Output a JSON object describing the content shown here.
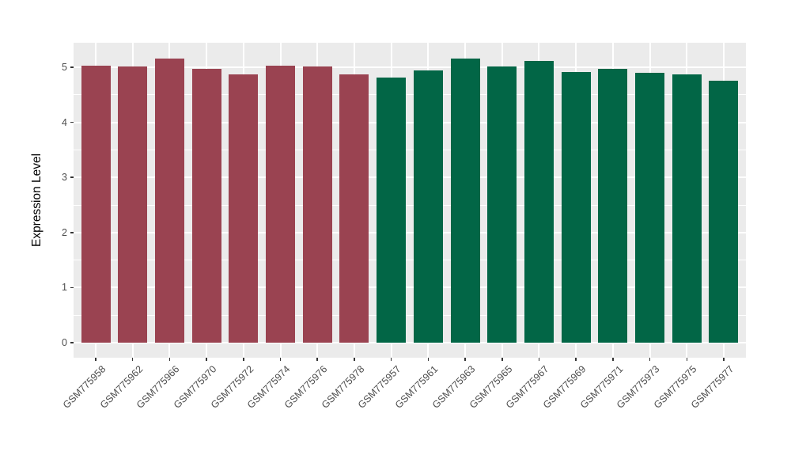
{
  "chart_data": {
    "type": "bar",
    "title": "",
    "xlabel": "",
    "ylabel": "Expression Level",
    "ylim": [
      0,
      5.45
    ],
    "yticks": [
      0,
      1,
      2,
      3,
      4,
      5
    ],
    "grid": "on",
    "legend": "none",
    "panel_bg": "#EBEBEB",
    "grid_color": "#FFFFFF",
    "axis_text_color": "#4D4D4D",
    "group_colors": {
      "red": "#9A4351",
      "green": "#026646"
    },
    "categories": [
      "GSM775958",
      "GSM775962",
      "GSM775966",
      "GSM775970",
      "GSM775972",
      "GSM775974",
      "GSM775976",
      "GSM775978",
      "GSM775957",
      "GSM775961",
      "GSM775963",
      "GSM775965",
      "GSM775967",
      "GSM775969",
      "GSM775971",
      "GSM775973",
      "GSM775975",
      "GSM775977"
    ],
    "values": [
      5.03,
      5.02,
      5.16,
      4.97,
      4.87,
      5.03,
      5.01,
      4.87,
      4.81,
      4.94,
      5.16,
      5.02,
      5.11,
      4.91,
      4.97,
      4.9,
      4.87,
      4.76
    ],
    "groups": [
      "red",
      "red",
      "red",
      "red",
      "red",
      "red",
      "red",
      "red",
      "green",
      "green",
      "green",
      "green",
      "green",
      "green",
      "green",
      "green",
      "green",
      "green"
    ]
  }
}
